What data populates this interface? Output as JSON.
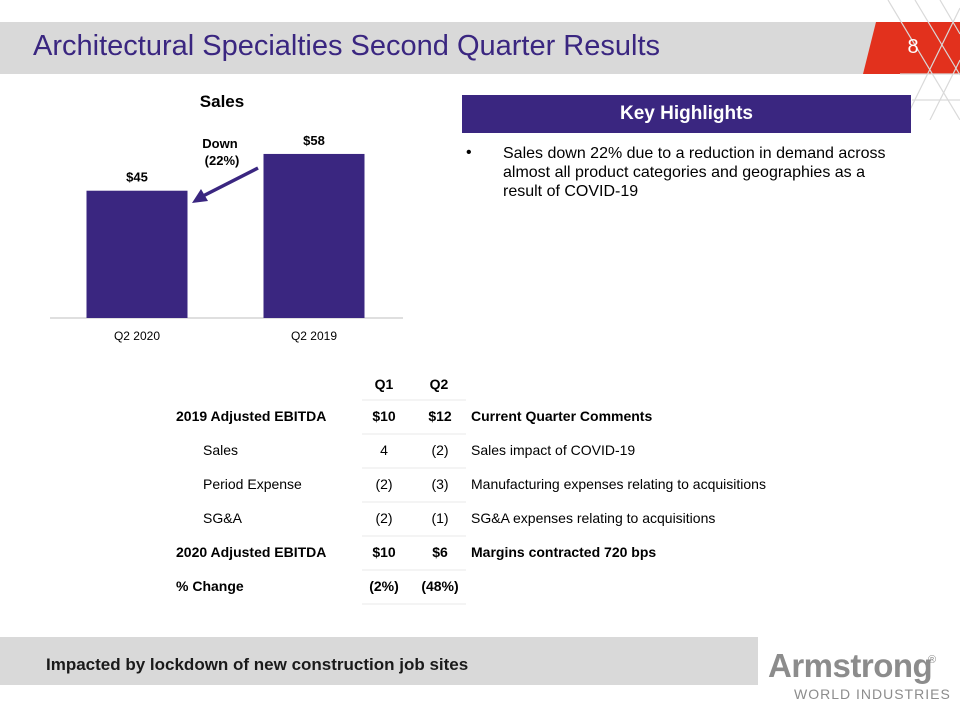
{
  "slide": {
    "title": "Architectural Specialties Second Quarter Results",
    "page_number": "8"
  },
  "colors": {
    "accent": "#3a2680",
    "red": "#e2311d",
    "gray_bar": "#d9d9d9"
  },
  "chart_data": {
    "type": "bar",
    "title": "Sales",
    "categories": [
      "Q2 2020",
      "Q2 2019"
    ],
    "values": [
      45,
      58
    ],
    "data_labels": [
      "$45",
      "$58"
    ],
    "annotation": {
      "line1": "Down",
      "line2": "(22%)"
    },
    "ylim": [
      0,
      70
    ],
    "grid": false,
    "legend": "none"
  },
  "highlights": {
    "header": "Key Highlights",
    "bullet": "•",
    "items": [
      "Sales down 22% due to a reduction in demand across almost all product categories and geographies as a result of COVID-19"
    ]
  },
  "table": {
    "headers": {
      "q1": "Q1",
      "q2": "Q2"
    },
    "rows": [
      {
        "label": "2019 Adjusted EBITDA",
        "q1": "$10",
        "q2": "$12",
        "comment": "Current Quarter Comments",
        "bold": true,
        "indent": false
      },
      {
        "label": "Sales",
        "q1": "4",
        "q2": "(2)",
        "comment": "Sales impact of COVID-19",
        "bold": false,
        "indent": true
      },
      {
        "label": "Period Expense",
        "q1": "(2)",
        "q2": "(3)",
        "comment": "Manufacturing expenses relating to acquisitions",
        "bold": false,
        "indent": true
      },
      {
        "label": "SG&A",
        "q1": "(2)",
        "q2": "(1)",
        "comment": "SG&A expenses relating to acquisitions",
        "bold": false,
        "indent": true
      },
      {
        "label": "2020 Adjusted EBITDA",
        "q1": "$10",
        "q2": "$6",
        "comment": "Margins contracted 720 bps",
        "bold": true,
        "indent": false
      },
      {
        "label": "% Change",
        "q1": "(2%)",
        "q2": "(48%)",
        "comment": "",
        "bold": true,
        "indent": false
      }
    ]
  },
  "footer": {
    "text": "Impacted by lockdown of new construction job sites"
  },
  "logo": {
    "name": "Armstrong",
    "registered": "®",
    "sub": "WORLD INDUSTRIES"
  }
}
